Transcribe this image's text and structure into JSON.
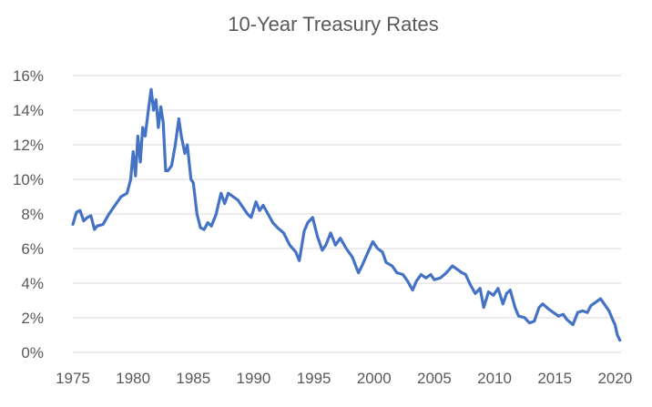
{
  "chart_data": {
    "type": "line",
    "title": "10-Year Treasury Rates",
    "xlabel": "",
    "ylabel": "",
    "xlim": [
      1975,
      2020.5
    ],
    "ylim": [
      0,
      16
    ],
    "grid": true,
    "legend": "none",
    "x_ticks": [
      1975,
      1980,
      1985,
      1990,
      1995,
      2000,
      2005,
      2010,
      2015,
      2020
    ],
    "x_tick_labels": [
      "1975",
      "1980",
      "1985",
      "1990",
      "1995",
      "2000",
      "2005",
      "2010",
      "2015",
      "2020"
    ],
    "y_ticks": [
      0,
      2,
      4,
      6,
      8,
      10,
      12,
      14,
      16
    ],
    "y_tick_labels": [
      "0%",
      "2%",
      "4%",
      "6%",
      "8%",
      "10%",
      "12%",
      "14%",
      "16%"
    ],
    "series": [
      {
        "color": "#4472c4",
        "x": [
          1975.0,
          1975.3,
          1975.6,
          1975.9,
          1976.2,
          1976.5,
          1976.8,
          1977.0,
          1977.5,
          1978.0,
          1978.5,
          1979.0,
          1979.5,
          1979.8,
          1980.0,
          1980.2,
          1980.4,
          1980.6,
          1980.8,
          1981.0,
          1981.3,
          1981.5,
          1981.7,
          1981.9,
          1982.1,
          1982.3,
          1982.5,
          1982.7,
          1982.9,
          1983.2,
          1983.5,
          1983.8,
          1984.0,
          1984.3,
          1984.5,
          1984.8,
          1985.0,
          1985.3,
          1985.6,
          1985.9,
          1986.2,
          1986.5,
          1986.9,
          1987.3,
          1987.6,
          1987.9,
          1988.3,
          1988.7,
          1989.0,
          1989.5,
          1989.8,
          1990.2,
          1990.5,
          1990.8,
          1991.2,
          1991.6,
          1992.0,
          1992.5,
          1993.0,
          1993.5,
          1993.8,
          1994.2,
          1994.5,
          1994.9,
          1995.3,
          1995.7,
          1996.0,
          1996.4,
          1996.8,
          1997.2,
          1997.7,
          1998.2,
          1998.7,
          1999.0,
          1999.5,
          1999.9,
          2000.3,
          2000.7,
          2001.0,
          2001.5,
          2001.9,
          2002.4,
          2002.8,
          2003.2,
          2003.5,
          2003.9,
          2004.3,
          2004.7,
          2005.0,
          2005.5,
          2006.0,
          2006.5,
          2006.9,
          2007.3,
          2007.6,
          2008.0,
          2008.4,
          2008.8,
          2009.1,
          2009.5,
          2009.9,
          2010.3,
          2010.7,
          2011.0,
          2011.3,
          2011.7,
          2012.0,
          2012.5,
          2012.9,
          2013.3,
          2013.7,
          2014.0,
          2014.5,
          2014.9,
          2015.3,
          2015.7,
          2016.0,
          2016.5,
          2016.9,
          2017.3,
          2017.7,
          2018.0,
          2018.4,
          2018.8,
          2019.1,
          2019.5,
          2019.8,
          2020.0,
          2020.2,
          2020.4
        ],
        "values": [
          7.4,
          8.1,
          8.2,
          7.6,
          7.8,
          7.9,
          7.1,
          7.3,
          7.4,
          8.0,
          8.5,
          9.0,
          9.2,
          10.0,
          11.6,
          10.2,
          12.5,
          11.0,
          13.0,
          12.5,
          14.2,
          15.2,
          14.0,
          14.6,
          13.0,
          14.2,
          13.3,
          10.5,
          10.5,
          10.8,
          12.0,
          13.5,
          12.5,
          11.5,
          12.0,
          10.0,
          9.8,
          8.0,
          7.2,
          7.1,
          7.5,
          7.3,
          8.0,
          9.2,
          8.6,
          9.2,
          9.0,
          8.8,
          8.5,
          8.0,
          7.8,
          8.7,
          8.2,
          8.5,
          8.0,
          7.5,
          7.2,
          6.9,
          6.2,
          5.8,
          5.3,
          7.0,
          7.5,
          7.8,
          6.7,
          5.9,
          6.2,
          6.9,
          6.2,
          6.6,
          6.0,
          5.5,
          4.6,
          5.0,
          5.8,
          6.4,
          6.0,
          5.8,
          5.2,
          5.0,
          4.6,
          4.5,
          4.1,
          3.6,
          4.1,
          4.5,
          4.3,
          4.5,
          4.2,
          4.3,
          4.6,
          5.0,
          4.8,
          4.6,
          4.5,
          3.9,
          3.4,
          3.7,
          2.6,
          3.5,
          3.3,
          3.7,
          2.8,
          3.4,
          3.6,
          2.6,
          2.1,
          2.0,
          1.7,
          1.8,
          2.6,
          2.8,
          2.5,
          2.3,
          2.1,
          2.2,
          1.9,
          1.6,
          2.3,
          2.4,
          2.3,
          2.7,
          2.9,
          3.1,
          2.8,
          2.4,
          1.9,
          1.6,
          1.0,
          0.7
        ]
      }
    ]
  }
}
